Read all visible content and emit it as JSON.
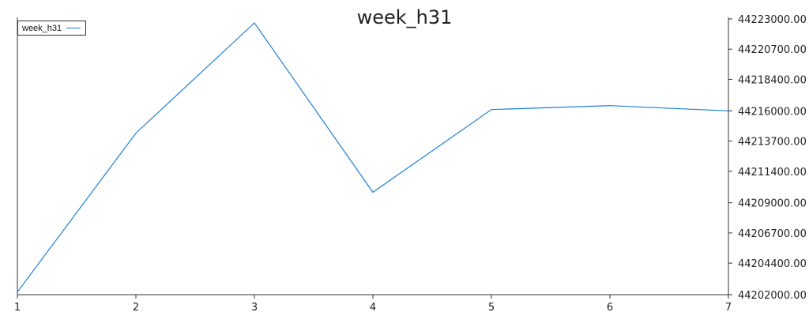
{
  "chart_data": {
    "type": "line",
    "title": "week_h31",
    "xlabel": "",
    "ylabel": "",
    "x": [
      1,
      2,
      3,
      4,
      5,
      6,
      7
    ],
    "x_tick_labels": [
      "1",
      "2",
      "3",
      "4",
      "5",
      "6",
      "7"
    ],
    "series": [
      {
        "name": "week_h31",
        "color": "#1c7fd6",
        "values": [
          44202200,
          44214300,
          44222700,
          44209800,
          44216100,
          44216400,
          44216000
        ]
      }
    ],
    "ylim": [
      44202000,
      44223000
    ],
    "y_ticks": [
      44202000,
      44204400,
      44206700,
      44209000,
      44211400,
      44213700,
      44216000,
      44218400,
      44220700,
      44223000
    ],
    "y_tick_labels": [
      "44202000.00",
      "44204400.00",
      "44206700.00",
      "44209000.00",
      "44211400.00",
      "44213700.00",
      "44216000.00",
      "44218400.00",
      "44220700.00",
      "44223000.00"
    ],
    "y_axis_side": "right",
    "grid": false,
    "legend_position": "top-left"
  }
}
